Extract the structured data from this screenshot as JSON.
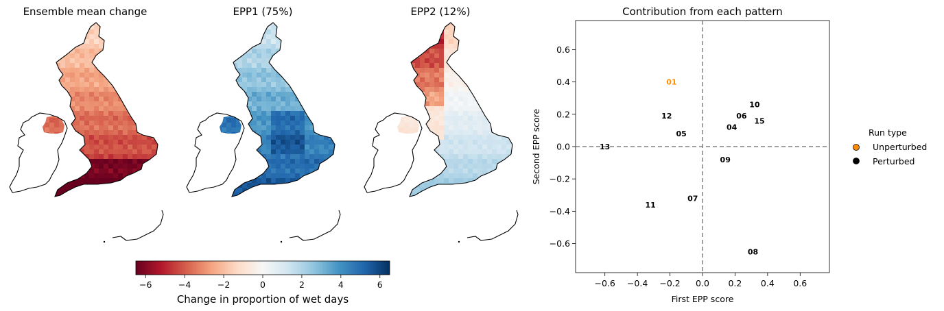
{
  "maps": [
    {
      "title": "Ensemble mean change",
      "scheme": "ensemble"
    },
    {
      "title": "EPP1 (75%)",
      "scheme": "epp1"
    },
    {
      "title": "EPP2 (12%)",
      "scheme": "epp2"
    }
  ],
  "colorbar": {
    "label": "Change in proportion of wet days",
    "range": [
      -6.5,
      6.5
    ],
    "ticks": [
      -6,
      -4,
      -2,
      0,
      2,
      4,
      6
    ],
    "tick_labels": [
      "−6",
      "−4",
      "−2",
      "0",
      "2",
      "4",
      "6"
    ],
    "colormap": "RdBu",
    "colors": [
      "#67001f",
      "#b2182b",
      "#d6604d",
      "#f4a582",
      "#fddbc7",
      "#f7f7f7",
      "#d1e5f0",
      "#92c5de",
      "#4393c3",
      "#2166ac",
      "#053061"
    ]
  },
  "chart_data": {
    "type": "scatter",
    "title": "Contribution from each pattern",
    "xlabel": "First EPP score",
    "ylabel": "Second EPP score",
    "xlim": [
      -0.78,
      0.78
    ],
    "ylim": [
      -0.78,
      0.78
    ],
    "xticks": [
      -0.6,
      -0.4,
      -0.2,
      0.0,
      0.2,
      0.4,
      0.6
    ],
    "xtick_labels": [
      "−0.6",
      "−0.4",
      "−0.2",
      "0.0",
      "0.2",
      "0.4",
      "0.6"
    ],
    "yticks": [
      -0.6,
      -0.4,
      -0.2,
      0.0,
      0.2,
      0.4,
      0.6
    ],
    "ytick_labels": [
      "−0.6",
      "−0.4",
      "−0.2",
      "0.0",
      "0.2",
      "0.4",
      "0.6"
    ],
    "reference_lines": {
      "x": 0,
      "y": 0,
      "style": "dashed",
      "color": "#808080"
    },
    "points": [
      {
        "label": "01",
        "x": -0.19,
        "y": 0.4,
        "type": "Unperturbed"
      },
      {
        "label": "04",
        "x": 0.18,
        "y": 0.12,
        "type": "Perturbed"
      },
      {
        "label": "05",
        "x": -0.13,
        "y": 0.08,
        "type": "Perturbed"
      },
      {
        "label": "06",
        "x": 0.24,
        "y": 0.19,
        "type": "Perturbed"
      },
      {
        "label": "07",
        "x": -0.06,
        "y": -0.32,
        "type": "Perturbed"
      },
      {
        "label": "08",
        "x": 0.31,
        "y": -0.65,
        "type": "Perturbed"
      },
      {
        "label": "09",
        "x": 0.14,
        "y": -0.08,
        "type": "Perturbed"
      },
      {
        "label": "10",
        "x": 0.32,
        "y": 0.26,
        "type": "Perturbed"
      },
      {
        "label": "11",
        "x": -0.32,
        "y": -0.36,
        "type": "Perturbed"
      },
      {
        "label": "12",
        "x": -0.22,
        "y": 0.19,
        "type": "Perturbed"
      },
      {
        "label": "13",
        "x": -0.6,
        "y": 0.0,
        "type": "Perturbed"
      },
      {
        "label": "15",
        "x": 0.35,
        "y": 0.16,
        "type": "Perturbed"
      }
    ],
    "legend": {
      "title": "Run type",
      "placement": "right",
      "entries": [
        {
          "name": "Unperturbed",
          "color": "#ff8c00"
        },
        {
          "name": "Perturbed",
          "color": "#000000"
        }
      ]
    }
  }
}
